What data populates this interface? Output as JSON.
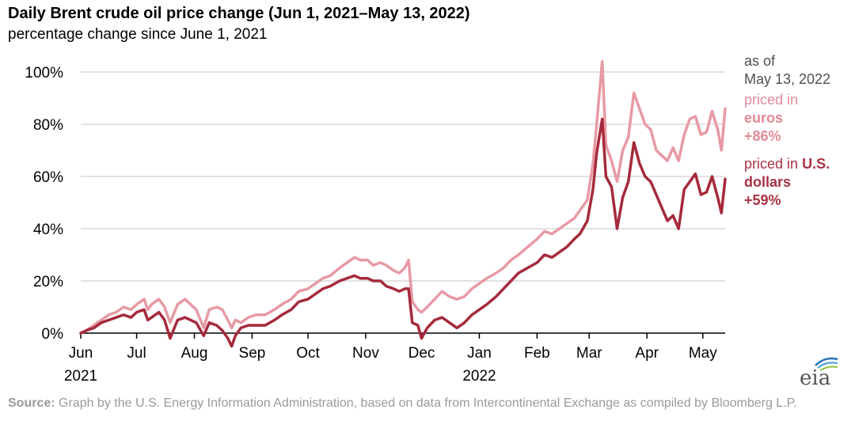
{
  "header": {
    "title": "Daily Brent crude oil price change (Jun 1, 2021–May 13, 2022)",
    "subtitle": "percentage change since June 1, 2021"
  },
  "legend": {
    "as_of_line1": "as of",
    "as_of_line2": "May 13, 2022",
    "eur_text1": "priced in",
    "eur_text2": "euros",
    "eur_value": "+86%",
    "usd_text1": "priced in",
    "usd_bold1": "U.S.",
    "usd_text2": "dollars",
    "usd_value": "+59%"
  },
  "source": {
    "label": "Source:",
    "text": "Graph by the U.S. Energy Information Administration, based on data from Intercontinental Exchange as compiled by Bloomberg L.P."
  },
  "logo": {
    "text": "eia"
  },
  "colors": {
    "euro": "#e79aa4",
    "usd": "#a52a3c",
    "grid": "#d9d9d9",
    "axis": "#000000"
  },
  "chart_data": {
    "type": "line",
    "title": "Daily Brent crude oil price change (Jun 1, 2021–May 13, 2022)",
    "subtitle": "percentage change since June 1, 2021",
    "ylim": [
      0,
      100
    ],
    "yticks": [
      0,
      20,
      40,
      60,
      80,
      100
    ],
    "ytick_labels": [
      "0%",
      "20%",
      "40%",
      "60%",
      "80%",
      "100%"
    ],
    "xlim": [
      "2021-06-01",
      "2022-05-13"
    ],
    "xticks": [
      {
        "date": "2021-06-01",
        "label": "Jun",
        "year": "2021"
      },
      {
        "date": "2021-07-01",
        "label": "Jul"
      },
      {
        "date": "2021-08-01",
        "label": "Aug"
      },
      {
        "date": "2021-09-01",
        "label": "Sep"
      },
      {
        "date": "2021-10-01",
        "label": "Oct"
      },
      {
        "date": "2021-11-01",
        "label": "Nov"
      },
      {
        "date": "2021-12-01",
        "label": "Dec"
      },
      {
        "date": "2022-01-01",
        "label": "Jan",
        "year": "2022"
      },
      {
        "date": "2022-02-01",
        "label": "Feb"
      },
      {
        "date": "2022-03-01",
        "label": "Mar"
      },
      {
        "date": "2022-04-01",
        "label": "Apr"
      },
      {
        "date": "2022-05-01",
        "label": "May"
      }
    ],
    "grid": true,
    "series": [
      {
        "name": "priced in euros",
        "color": "#e79aa4",
        "points": [
          [
            "2021-06-01",
            0
          ],
          [
            "2021-06-04",
            1
          ],
          [
            "2021-06-08",
            3
          ],
          [
            "2021-06-12",
            5
          ],
          [
            "2021-06-16",
            7
          ],
          [
            "2021-06-20",
            8
          ],
          [
            "2021-06-24",
            10
          ],
          [
            "2021-06-28",
            9
          ],
          [
            "2021-07-01",
            11
          ],
          [
            "2021-07-05",
            13
          ],
          [
            "2021-07-07",
            9
          ],
          [
            "2021-07-09",
            11
          ],
          [
            "2021-07-13",
            13
          ],
          [
            "2021-07-16",
            10
          ],
          [
            "2021-07-19",
            4
          ],
          [
            "2021-07-23",
            11
          ],
          [
            "2021-07-27",
            13
          ],
          [
            "2021-07-30",
            11
          ],
          [
            "2021-08-02",
            9
          ],
          [
            "2021-08-06",
            2
          ],
          [
            "2021-08-09",
            9
          ],
          [
            "2021-08-13",
            10
          ],
          [
            "2021-08-16",
            9
          ],
          [
            "2021-08-19",
            5
          ],
          [
            "2021-08-21",
            2
          ],
          [
            "2021-08-23",
            5
          ],
          [
            "2021-08-26",
            4
          ],
          [
            "2021-08-30",
            6
          ],
          [
            "2021-09-03",
            7
          ],
          [
            "2021-09-08",
            7
          ],
          [
            "2021-09-13",
            9
          ],
          [
            "2021-09-17",
            11
          ],
          [
            "2021-09-22",
            13
          ],
          [
            "2021-09-26",
            16
          ],
          [
            "2021-10-01",
            17
          ],
          [
            "2021-10-05",
            19
          ],
          [
            "2021-10-09",
            21
          ],
          [
            "2021-10-13",
            22
          ],
          [
            "2021-10-18",
            25
          ],
          [
            "2021-10-22",
            27
          ],
          [
            "2021-10-26",
            29
          ],
          [
            "2021-10-29",
            28
          ],
          [
            "2021-11-02",
            28
          ],
          [
            "2021-11-05",
            26
          ],
          [
            "2021-11-09",
            27
          ],
          [
            "2021-11-12",
            26
          ],
          [
            "2021-11-16",
            24
          ],
          [
            "2021-11-19",
            23
          ],
          [
            "2021-11-22",
            25
          ],
          [
            "2021-11-24",
            28
          ],
          [
            "2021-11-26",
            12
          ],
          [
            "2021-11-29",
            9
          ],
          [
            "2021-12-01",
            8
          ],
          [
            "2021-12-04",
            10
          ],
          [
            "2021-12-08",
            13
          ],
          [
            "2021-12-12",
            16
          ],
          [
            "2021-12-16",
            14
          ],
          [
            "2021-12-20",
            13
          ],
          [
            "2021-12-24",
            14
          ],
          [
            "2021-12-28",
            17
          ],
          [
            "2022-01-01",
            19
          ],
          [
            "2022-01-05",
            21
          ],
          [
            "2022-01-10",
            23
          ],
          [
            "2022-01-14",
            25
          ],
          [
            "2022-01-18",
            28
          ],
          [
            "2022-01-22",
            30
          ],
          [
            "2022-01-27",
            33
          ],
          [
            "2022-02-01",
            36
          ],
          [
            "2022-02-05",
            39
          ],
          [
            "2022-02-09",
            38
          ],
          [
            "2022-02-13",
            40
          ],
          [
            "2022-02-17",
            42
          ],
          [
            "2022-02-21",
            44
          ],
          [
            "2022-02-24",
            47
          ],
          [
            "2022-02-28",
            51
          ],
          [
            "2022-03-03",
            65
          ],
          [
            "2022-03-05",
            80
          ],
          [
            "2022-03-08",
            104
          ],
          [
            "2022-03-10",
            72
          ],
          [
            "2022-03-13",
            66
          ],
          [
            "2022-03-16",
            58
          ],
          [
            "2022-03-19",
            70
          ],
          [
            "2022-03-22",
            75
          ],
          [
            "2022-03-25",
            92
          ],
          [
            "2022-03-28",
            86
          ],
          [
            "2022-03-31",
            80
          ],
          [
            "2022-04-03",
            78
          ],
          [
            "2022-04-06",
            70
          ],
          [
            "2022-04-09",
            68
          ],
          [
            "2022-04-12",
            66
          ],
          [
            "2022-04-15",
            71
          ],
          [
            "2022-04-18",
            66
          ],
          [
            "2022-04-21",
            76
          ],
          [
            "2022-04-24",
            82
          ],
          [
            "2022-04-27",
            83
          ],
          [
            "2022-04-30",
            76
          ],
          [
            "2022-05-03",
            77
          ],
          [
            "2022-05-06",
            85
          ],
          [
            "2022-05-09",
            78
          ],
          [
            "2022-05-11",
            70
          ],
          [
            "2022-05-13",
            86
          ]
        ]
      },
      {
        "name": "priced in U.S. dollars",
        "color": "#a52a3c",
        "points": [
          [
            "2021-06-01",
            0
          ],
          [
            "2021-06-04",
            1
          ],
          [
            "2021-06-08",
            2
          ],
          [
            "2021-06-12",
            4
          ],
          [
            "2021-06-16",
            5
          ],
          [
            "2021-06-20",
            6
          ],
          [
            "2021-06-24",
            7
          ],
          [
            "2021-06-28",
            6
          ],
          [
            "2021-07-01",
            8
          ],
          [
            "2021-07-05",
            9
          ],
          [
            "2021-07-07",
            5
          ],
          [
            "2021-07-09",
            6
          ],
          [
            "2021-07-13",
            8
          ],
          [
            "2021-07-16",
            5
          ],
          [
            "2021-07-19",
            -2
          ],
          [
            "2021-07-23",
            5
          ],
          [
            "2021-07-27",
            6
          ],
          [
            "2021-07-30",
            5
          ],
          [
            "2021-08-02",
            4
          ],
          [
            "2021-08-06",
            -1
          ],
          [
            "2021-08-09",
            4
          ],
          [
            "2021-08-13",
            3
          ],
          [
            "2021-08-16",
            1
          ],
          [
            "2021-08-19",
            -2
          ],
          [
            "2021-08-21",
            -5
          ],
          [
            "2021-08-23",
            -1
          ],
          [
            "2021-08-26",
            2
          ],
          [
            "2021-08-30",
            3
          ],
          [
            "2021-09-03",
            3
          ],
          [
            "2021-09-08",
            3
          ],
          [
            "2021-09-13",
            5
          ],
          [
            "2021-09-17",
            7
          ],
          [
            "2021-09-22",
            9
          ],
          [
            "2021-09-26",
            12
          ],
          [
            "2021-10-01",
            13
          ],
          [
            "2021-10-05",
            15
          ],
          [
            "2021-10-09",
            17
          ],
          [
            "2021-10-13",
            18
          ],
          [
            "2021-10-18",
            20
          ],
          [
            "2021-10-22",
            21
          ],
          [
            "2021-10-26",
            22
          ],
          [
            "2021-10-29",
            21
          ],
          [
            "2021-11-02",
            21
          ],
          [
            "2021-11-05",
            20
          ],
          [
            "2021-11-09",
            20
          ],
          [
            "2021-11-12",
            18
          ],
          [
            "2021-11-16",
            17
          ],
          [
            "2021-11-19",
            16
          ],
          [
            "2021-11-22",
            17
          ],
          [
            "2021-11-24",
            17
          ],
          [
            "2021-11-26",
            4
          ],
          [
            "2021-11-29",
            3
          ],
          [
            "2021-12-01",
            -2
          ],
          [
            "2021-12-04",
            2
          ],
          [
            "2021-12-08",
            5
          ],
          [
            "2021-12-12",
            6
          ],
          [
            "2021-12-16",
            4
          ],
          [
            "2021-12-20",
            2
          ],
          [
            "2021-12-24",
            4
          ],
          [
            "2021-12-28",
            7
          ],
          [
            "2022-01-01",
            9
          ],
          [
            "2022-01-05",
            11
          ],
          [
            "2022-01-10",
            14
          ],
          [
            "2022-01-14",
            17
          ],
          [
            "2022-01-18",
            20
          ],
          [
            "2022-01-22",
            23
          ],
          [
            "2022-01-27",
            25
          ],
          [
            "2022-02-01",
            27
          ],
          [
            "2022-02-05",
            30
          ],
          [
            "2022-02-09",
            29
          ],
          [
            "2022-02-13",
            31
          ],
          [
            "2022-02-17",
            33
          ],
          [
            "2022-02-21",
            36
          ],
          [
            "2022-02-24",
            38
          ],
          [
            "2022-02-28",
            43
          ],
          [
            "2022-03-03",
            55
          ],
          [
            "2022-03-05",
            69
          ],
          [
            "2022-03-08",
            82
          ],
          [
            "2022-03-10",
            60
          ],
          [
            "2022-03-13",
            56
          ],
          [
            "2022-03-16",
            40
          ],
          [
            "2022-03-19",
            52
          ],
          [
            "2022-03-22",
            58
          ],
          [
            "2022-03-25",
            73
          ],
          [
            "2022-03-28",
            65
          ],
          [
            "2022-03-31",
            60
          ],
          [
            "2022-04-03",
            58
          ],
          [
            "2022-04-06",
            53
          ],
          [
            "2022-04-09",
            48
          ],
          [
            "2022-04-12",
            43
          ],
          [
            "2022-04-15",
            45
          ],
          [
            "2022-04-18",
            40
          ],
          [
            "2022-04-21",
            55
          ],
          [
            "2022-04-24",
            58
          ],
          [
            "2022-04-27",
            61
          ],
          [
            "2022-04-30",
            53
          ],
          [
            "2022-05-03",
            54
          ],
          [
            "2022-05-06",
            60
          ],
          [
            "2022-05-09",
            52
          ],
          [
            "2022-05-11",
            46
          ],
          [
            "2022-05-13",
            59
          ]
        ]
      }
    ]
  }
}
